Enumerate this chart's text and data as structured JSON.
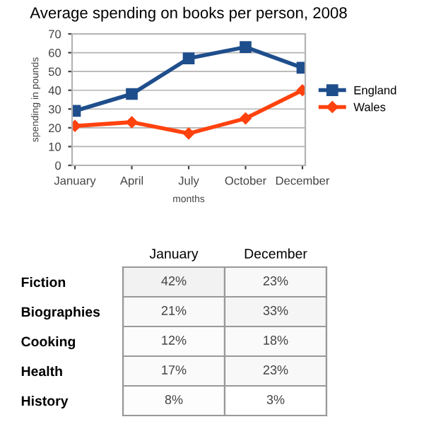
{
  "chart_data": [
    {
      "type": "line",
      "title": "Average spending on books per person, 2008",
      "xlabel": "months",
      "ylabel": "spending in pounds",
      "categories": [
        "January",
        "April",
        "July",
        "October",
        "December"
      ],
      "series": [
        {
          "name": "England",
          "color": "#1f4e8c",
          "marker": "square",
          "values": [
            29,
            38,
            57,
            63,
            52
          ]
        },
        {
          "name": "Wales",
          "color": "#ff420e",
          "marker": "diamond",
          "values": [
            21,
            23,
            17,
            25,
            40
          ]
        }
      ],
      "ylim": [
        0,
        70
      ],
      "yticks": [
        0,
        10,
        20,
        30,
        40,
        50,
        60,
        70
      ],
      "grid": "y",
      "legend": "right",
      "line_style": "solid"
    },
    {
      "type": "heatmap",
      "categories": [
        "January",
        "December"
      ],
      "y_categories": [
        "Fiction",
        "Biographies",
        "Cooking",
        "Health",
        "History"
      ],
      "cells": [
        [
          42,
          23
        ],
        [
          21,
          33
        ],
        [
          12,
          18
        ],
        [
          17,
          23
        ],
        [
          8,
          3
        ]
      ],
      "cell_labels": [
        [
          "42%",
          "23%"
        ],
        [
          "21%",
          "33%"
        ],
        [
          "12%",
          "18%"
        ],
        [
          "17%",
          "23%"
        ],
        [
          "8%",
          "3%"
        ]
      ]
    }
  ]
}
